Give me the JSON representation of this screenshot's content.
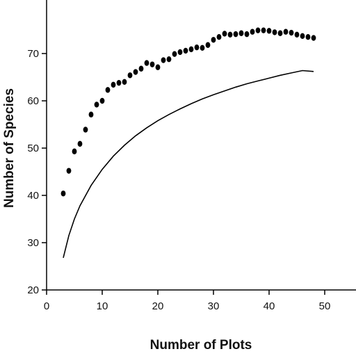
{
  "chart_data": {
    "type": "scatter",
    "title": "",
    "xlabel": "Number of Plots",
    "ylabel": "Number of Species",
    "xlim": [
      0,
      55
    ],
    "ylim": [
      20,
      78
    ],
    "xticks": [
      0,
      10,
      20,
      30,
      40,
      50
    ],
    "yticks": [
      20,
      30,
      40,
      50,
      60,
      70
    ],
    "xtick_labels": [
      "0",
      "10",
      "20",
      "30",
      "40",
      "50"
    ],
    "ytick_labels": [
      "20",
      "30",
      "40",
      "50",
      "60",
      "70"
    ],
    "grid": false,
    "legend": "none",
    "marker_color": "#000000",
    "line_color": "#000000",
    "series": [
      {
        "kind": "scatter",
        "x": [
          3,
          4,
          5,
          6,
          7,
          8,
          9,
          10,
          11,
          12,
          13,
          14,
          15,
          16,
          17,
          18,
          19,
          20,
          21,
          22,
          23,
          24,
          25,
          26,
          27,
          28,
          29,
          30,
          31,
          32,
          33,
          34,
          35,
          36,
          37,
          38,
          39,
          40,
          41,
          42,
          43,
          44,
          45,
          46,
          47,
          48
        ],
        "y": [
          40.4,
          45.2,
          49.3,
          50.9,
          53.9,
          57.1,
          59.2,
          60.0,
          62.3,
          63.4,
          63.8,
          64.0,
          65.4,
          66.1,
          66.8,
          68.0,
          67.7,
          67.1,
          68.6,
          68.8,
          69.9,
          70.3,
          70.6,
          70.9,
          71.3,
          71.2,
          71.8,
          72.9,
          73.5,
          74.2,
          74.0,
          74.1,
          74.3,
          74.1,
          74.6,
          74.9,
          74.9,
          74.8,
          74.5,
          74.3,
          74.6,
          74.4,
          74.0,
          73.7,
          73.5,
          73.3
        ]
      },
      {
        "kind": "line",
        "x": [
          3,
          4,
          5,
          6,
          8,
          10,
          12,
          14,
          16,
          18,
          20,
          22,
          24,
          26,
          28,
          30,
          32,
          34,
          36,
          38,
          40,
          42,
          44,
          46,
          48
        ],
        "y": [
          26.8,
          31.5,
          35.0,
          37.8,
          42.1,
          45.5,
          48.3,
          50.6,
          52.6,
          54.3,
          55.8,
          57.1,
          58.3,
          59.4,
          60.4,
          61.3,
          62.1,
          62.9,
          63.6,
          64.2,
          64.8,
          65.4,
          65.9,
          66.4,
          66.2
        ]
      }
    ]
  }
}
